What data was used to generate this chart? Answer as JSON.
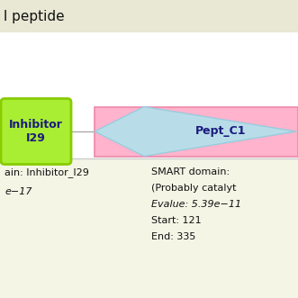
{
  "title": "l peptide",
  "bg_color_top": "#ffffff",
  "bg_color_bottom": "#f5f5e6",
  "inhibitor_label": "Inhibitor\nI29",
  "inhibitor_color_face": "#aaee33",
  "inhibitor_color_edge": "#88cc00",
  "pept_label": "Pept_C1",
  "pept_bg_color": "#ffb3cc",
  "pept_diamond_color": "#b8dde8",
  "pept_diamond_edge": "#99ccdd",
  "text_color": "#1a1a7e",
  "bottom_left_text": [
    "ain: Inhibitor_I29",
    "e−17"
  ],
  "bottom_right_text": [
    "SMART domain:",
    "(Probably catalyt",
    "Evalue: 5.39e−11",
    "Start: 121",
    "End: 335"
  ],
  "title_bg": "#e8e8d8"
}
